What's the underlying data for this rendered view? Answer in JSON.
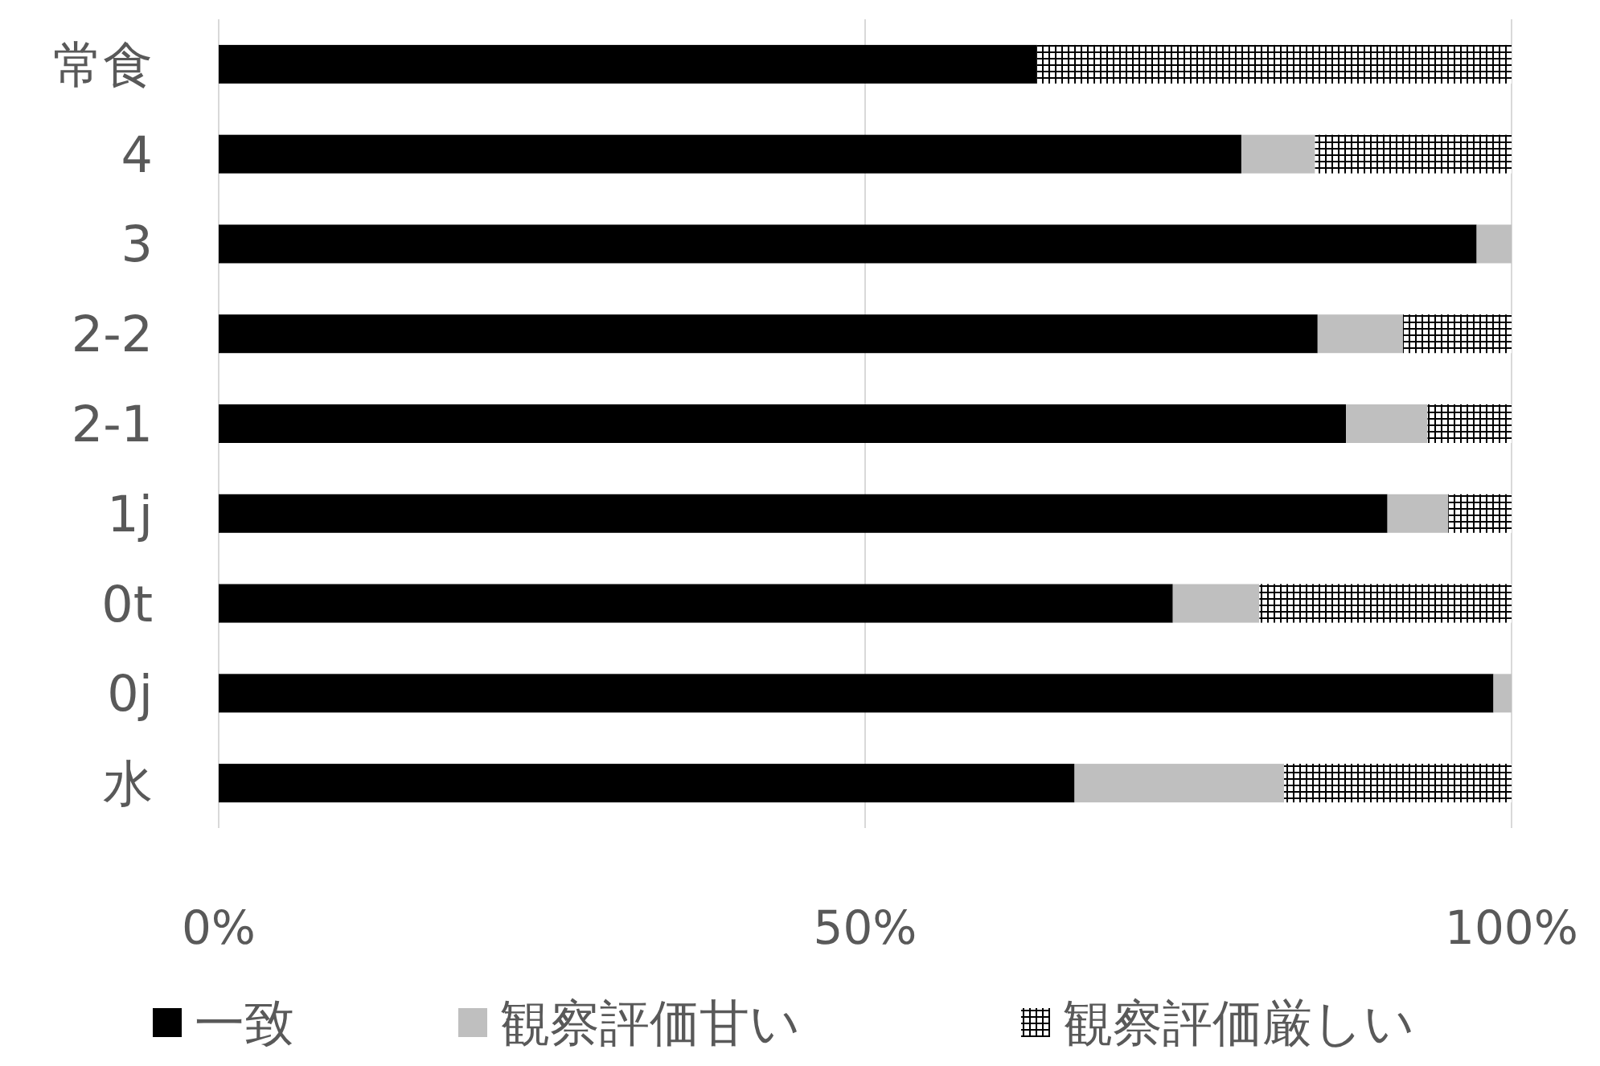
{
  "chart_data": {
    "type": "bar",
    "orientation": "horizontal",
    "stacked": true,
    "categories": [
      "常食",
      "4",
      "3",
      "2-2",
      "2-1",
      "1j",
      "0t",
      "0j",
      "水"
    ],
    "series": [
      {
        "name": "一致",
        "color": "#000000",
        "values": [
          63.3,
          79.1,
          97.3,
          85.0,
          87.2,
          90.4,
          73.8,
          98.6,
          66.2
        ]
      },
      {
        "name": "観察評価甘い",
        "color": "#bfbfbf",
        "values": [
          0,
          5.7,
          2.7,
          6.6,
          6.3,
          4.7,
          6.7,
          1.4,
          16.2
        ]
      },
      {
        "name": "観察評価厳しい",
        "color": "#000000",
        "values": [
          36.7,
          15.2,
          0,
          8.4,
          6.5,
          4.9,
          19.5,
          0,
          17.6
        ]
      }
    ],
    "xlim": [
      0,
      100
    ],
    "xticks": [
      {
        "value": 0,
        "label": "0%"
      },
      {
        "value": 50,
        "label": "50%"
      },
      {
        "value": 100,
        "label": "100%"
      }
    ],
    "grid": "x",
    "legend": "bottom"
  }
}
